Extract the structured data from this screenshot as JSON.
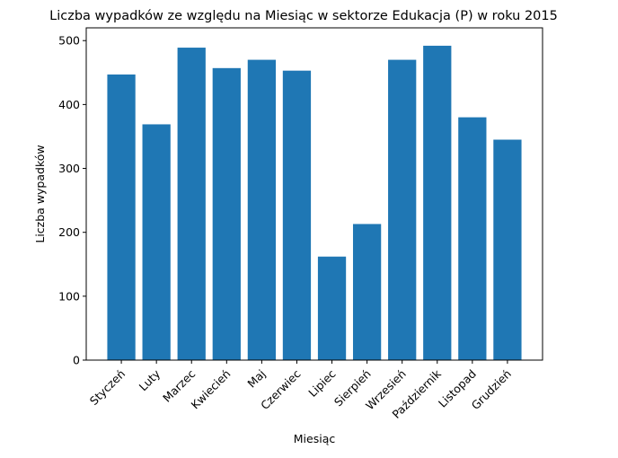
{
  "chart_data": {
    "type": "bar",
    "title": "Liczba wypadków ze względu na Miesiąc w sektorze Edukacja  (P)   w roku 2015",
    "xlabel": "Miesiąc",
    "ylabel": "Liczba wypadków",
    "categories": [
      "Styczeń",
      "Luty",
      "Marzec",
      "Kwiecień",
      "Maj",
      "Czerwiec",
      "Lipiec",
      "Sierpień",
      "Wrzesień",
      "Październik",
      "Listopad",
      "Grudzień"
    ],
    "values": [
      447,
      369,
      489,
      457,
      470,
      453,
      162,
      213,
      470,
      492,
      380,
      345
    ],
    "ylim": [
      0,
      520
    ],
    "yticks": [
      0,
      100,
      200,
      300,
      400,
      500
    ],
    "grid": false,
    "bar_color": "#1f77b4"
  }
}
